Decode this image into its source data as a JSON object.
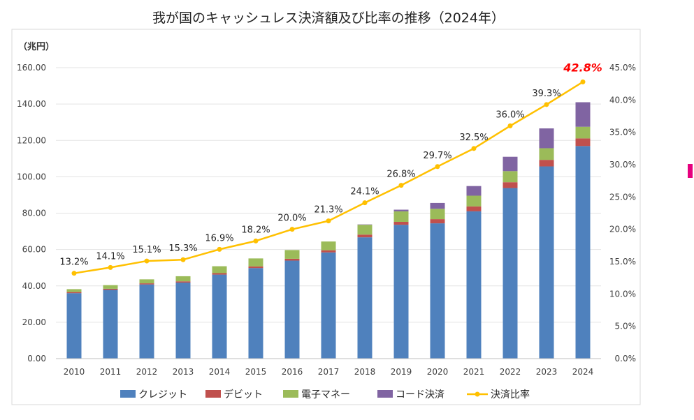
{
  "chart_data": {
    "type": "bar",
    "title": "我が国のキャッシュレス決済額及び比率の推移（2024年）",
    "y_unit_label": "（兆円）",
    "categories": [
      "2010",
      "2011",
      "2012",
      "2013",
      "2014",
      "2015",
      "2016",
      "2017",
      "2018",
      "2019",
      "2020",
      "2021",
      "2022",
      "2023",
      "2024"
    ],
    "ylim": [
      0,
      160
    ],
    "y_ticks": [
      "0.00",
      "20.00",
      "40.00",
      "60.00",
      "80.00",
      "100.00",
      "120.00",
      "140.00",
      "160.00"
    ],
    "y2lim": [
      0,
      45
    ],
    "y2_ticks": [
      "0.0%",
      "5.0%",
      "10.0%",
      "15.0%",
      "20.0%",
      "25.0%",
      "30.0%",
      "35.0%",
      "40.0%",
      "45.0%"
    ],
    "series": [
      {
        "name": "クレジット",
        "color": "#4F81BD",
        "values": [
          36.0,
          37.8,
          40.8,
          41.8,
          46.2,
          49.8,
          53.9,
          58.4,
          66.7,
          73.6,
          74.4,
          81.0,
          93.8,
          105.7,
          116.9
        ]
      },
      {
        "name": "デビット",
        "color": "#C0504D",
        "values": [
          0.6,
          0.6,
          0.6,
          0.7,
          0.8,
          0.9,
          1.0,
          1.2,
          1.5,
          1.6,
          2.3,
          2.7,
          3.2,
          3.6,
          4.2
        ]
      },
      {
        "name": "電子マネー",
        "color": "#9BBB59",
        "values": [
          1.6,
          2.0,
          2.2,
          2.8,
          3.8,
          4.4,
          4.8,
          4.8,
          5.4,
          5.8,
          5.7,
          5.9,
          6.1,
          6.4,
          6.4
        ]
      },
      {
        "name": "コード決済",
        "color": "#8064A2",
        "values": [
          0.0,
          0.0,
          0.0,
          0.0,
          0.0,
          0.0,
          0.0,
          0.0,
          0.2,
          0.9,
          3.2,
          5.3,
          7.9,
          10.9,
          13.5
        ]
      }
    ],
    "line": {
      "name": "決済比率",
      "color": "#FFC000",
      "axis": "right",
      "values": [
        13.2,
        14.1,
        15.1,
        15.3,
        16.9,
        18.2,
        20.0,
        21.3,
        24.1,
        26.8,
        29.7,
        32.5,
        36.0,
        39.3,
        42.8
      ],
      "labels": [
        "13.2%",
        "14.1%",
        "15.1%",
        "15.3%",
        "16.9%",
        "18.2%",
        "20.0%",
        "21.3%",
        "24.1%",
        "26.8%",
        "29.7%",
        "32.5%",
        "36.0%",
        "39.3%",
        "42.8%"
      ],
      "highlight_color": "#FF0000"
    },
    "legend_position": "bottom",
    "grid": true
  },
  "accent_color": "#E6007E"
}
